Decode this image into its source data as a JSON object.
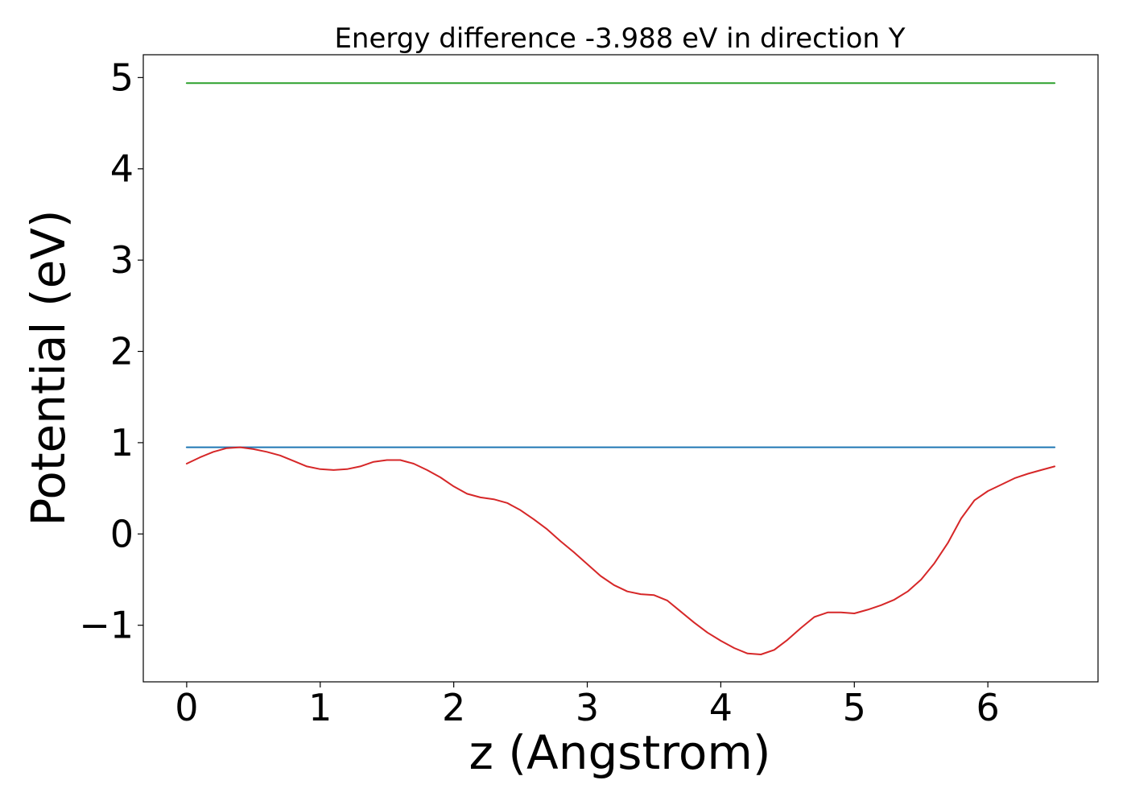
{
  "chart_data": {
    "type": "line",
    "title": "Energy difference -3.988 eV in direction Y",
    "xlabel": "z (Angstrom)",
    "ylabel": "Potential (eV)",
    "xlim": [
      -0.325,
      6.825
    ],
    "ylim": [
      -1.62,
      5.25
    ],
    "xticks": [
      0,
      1,
      2,
      3,
      4,
      5,
      6
    ],
    "yticks": [
      -1,
      0,
      1,
      2,
      3,
      4,
      5
    ],
    "ytick_labels": [
      "−1",
      "0",
      "1",
      "2",
      "3",
      "4",
      "5"
    ],
    "grid": false,
    "legend": "none",
    "series": [
      {
        "color": "#2ca02c",
        "x": [
          0,
          6.5
        ],
        "y": [
          4.94,
          4.94
        ]
      },
      {
        "color": "#1f77b4",
        "x": [
          0,
          6.5
        ],
        "y": [
          0.95,
          0.95
        ]
      },
      {
        "color": "#d62728",
        "x": [
          0,
          0.1,
          0.2,
          0.3,
          0.4,
          0.5,
          0.6,
          0.7,
          0.8,
          0.9,
          1.0,
          1.1,
          1.2,
          1.3,
          1.4,
          1.5,
          1.6,
          1.7,
          1.8,
          1.9,
          2.0,
          2.1,
          2.2,
          2.3,
          2.4,
          2.5,
          2.6,
          2.7,
          2.8,
          2.9,
          3.0,
          3.1,
          3.2,
          3.3,
          3.4,
          3.5,
          3.6,
          3.7,
          3.8,
          3.9,
          4.0,
          4.1,
          4.2,
          4.3,
          4.4,
          4.5,
          4.6,
          4.7,
          4.8,
          4.9,
          5.0,
          5.1,
          5.2,
          5.3,
          5.4,
          5.5,
          5.6,
          5.7,
          5.8,
          5.9,
          6.0,
          6.1,
          6.2,
          6.3,
          6.4,
          6.5
        ],
        "y": [
          0.77,
          0.84,
          0.9,
          0.94,
          0.95,
          0.93,
          0.9,
          0.86,
          0.8,
          0.74,
          0.71,
          0.7,
          0.71,
          0.74,
          0.79,
          0.81,
          0.81,
          0.77,
          0.7,
          0.62,
          0.52,
          0.44,
          0.4,
          0.38,
          0.34,
          0.26,
          0.16,
          0.05,
          -0.08,
          -0.2,
          -0.33,
          -0.46,
          -0.56,
          -0.63,
          -0.66,
          -0.67,
          -0.73,
          -0.85,
          -0.97,
          -1.08,
          -1.17,
          -1.25,
          -1.31,
          -1.32,
          -1.27,
          -1.16,
          -1.03,
          -0.91,
          -0.86,
          -0.86,
          -0.87,
          -0.83,
          -0.78,
          -0.72,
          -0.63,
          -0.5,
          -0.32,
          -0.1,
          0.17,
          0.37,
          0.47,
          0.54,
          0.61,
          0.66,
          0.7,
          0.74
        ]
      }
    ]
  }
}
